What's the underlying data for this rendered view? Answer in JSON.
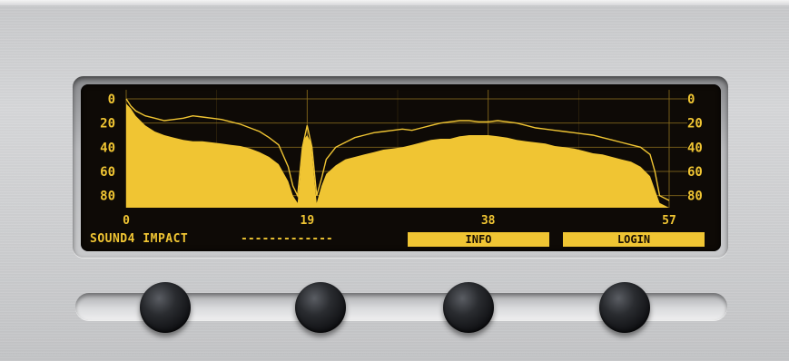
{
  "device": {
    "title": "SOUND4 IMPACT",
    "dashes": "-------------",
    "softkeys": [
      {
        "label": "INFO"
      },
      {
        "label": "LOGIN"
      }
    ],
    "knobs": [
      {
        "name": "knob-1"
      },
      {
        "name": "knob-2"
      },
      {
        "name": "knob-3"
      },
      {
        "name": "knob-4"
      }
    ]
  },
  "colors": {
    "lcd_background": "#0e0a06",
    "lcd_amber": "#f0c533",
    "grid": "#8a6d1e"
  },
  "chart_data": {
    "type": "area",
    "x_ticks": [
      "0",
      "19",
      "38",
      "57"
    ],
    "y_left_ticks": [
      "0",
      "20",
      "40",
      "60",
      "80"
    ],
    "y_right_ticks": [
      "0",
      "20",
      "40",
      "60",
      "80"
    ],
    "xlim": [
      0,
      57
    ],
    "ylim": [
      0,
      90
    ],
    "y_inverted": true,
    "grid": true,
    "series": [
      {
        "kind": "filled-area",
        "x": [
          0,
          0.5,
          1,
          2,
          3,
          4,
          5,
          6,
          7,
          8,
          9,
          10,
          11,
          12,
          13,
          14,
          15,
          16,
          17,
          17.5,
          18,
          18.3,
          18.6,
          19,
          19.4,
          19.7,
          20,
          20.5,
          21,
          22,
          23,
          24,
          25,
          26,
          27,
          28,
          29,
          30,
          31,
          32,
          33,
          34,
          35,
          36,
          37,
          38,
          39,
          40,
          41,
          42,
          43,
          44,
          45,
          46,
          47,
          48,
          49,
          50,
          51,
          52,
          53,
          54,
          55,
          56,
          57
        ],
        "y": [
          4,
          8,
          14,
          22,
          27,
          30,
          32,
          34,
          35,
          35,
          36,
          37,
          38,
          39,
          41,
          44,
          48,
          54,
          68,
          80,
          86,
          60,
          34,
          30,
          36,
          62,
          86,
          72,
          62,
          55,
          50,
          48,
          46,
          44,
          42,
          41,
          40,
          38,
          36,
          34,
          33,
          33,
          31,
          30,
          30,
          30,
          31,
          32,
          34,
          35,
          36,
          37,
          39,
          40,
          41,
          43,
          45,
          46,
          48,
          50,
          52,
          56,
          64,
          86,
          90
        ]
      },
      {
        "kind": "peak-line",
        "x": [
          0,
          0.5,
          1,
          2,
          3,
          4,
          5,
          6,
          7,
          8,
          9,
          10,
          11,
          12,
          13,
          14,
          15,
          16,
          17,
          17.5,
          18,
          18.5,
          19,
          19.5,
          20,
          20.5,
          21,
          22,
          23,
          24,
          25,
          26,
          27,
          28,
          29,
          30,
          31,
          32,
          33,
          34,
          35,
          36,
          37,
          38,
          39,
          40,
          41,
          42,
          43,
          44,
          45,
          46,
          47,
          48,
          49,
          50,
          51,
          52,
          53,
          54,
          55,
          55.5,
          56,
          57
        ],
        "y": [
          0,
          6,
          10,
          14,
          16,
          18,
          17,
          16,
          14,
          15,
          16,
          17,
          19,
          21,
          24,
          27,
          32,
          38,
          56,
          72,
          80,
          40,
          22,
          40,
          80,
          66,
          50,
          40,
          36,
          32,
          30,
          28,
          27,
          26,
          25,
          26,
          24,
          22,
          20,
          19,
          18,
          18,
          19,
          19,
          18,
          19,
          20,
          22,
          24,
          25,
          26,
          27,
          28,
          29,
          30,
          32,
          34,
          36,
          38,
          40,
          46,
          60,
          80,
          84
        ]
      }
    ]
  }
}
